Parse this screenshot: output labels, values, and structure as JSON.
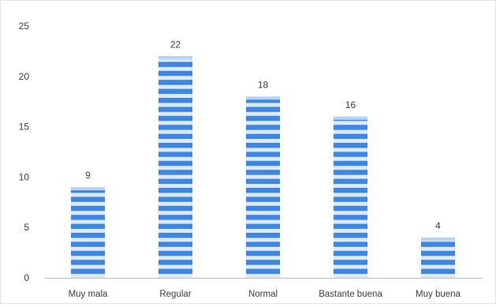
{
  "chart_data": {
    "type": "bar",
    "categories": [
      "Muy mala",
      "Regular",
      "Normal",
      "Bastante buena",
      "Muy buena"
    ],
    "values": [
      9,
      22,
      18,
      16,
      4
    ],
    "data_labels": [
      "9",
      "22",
      "18",
      "16",
      "4"
    ],
    "y_ticks": [
      "0",
      "5",
      "10",
      "15",
      "20",
      "25"
    ],
    "ylim": [
      0,
      25
    ],
    "title": "",
    "xlabel": "",
    "ylabel": "",
    "grid": false,
    "legend": "none",
    "bar_pattern": "horizontal stripes",
    "colors": {
      "bar_dark": "#3f86e0",
      "bar_light": "#dce9fb",
      "axis": "#bfbfbf",
      "text": "#404040"
    }
  }
}
